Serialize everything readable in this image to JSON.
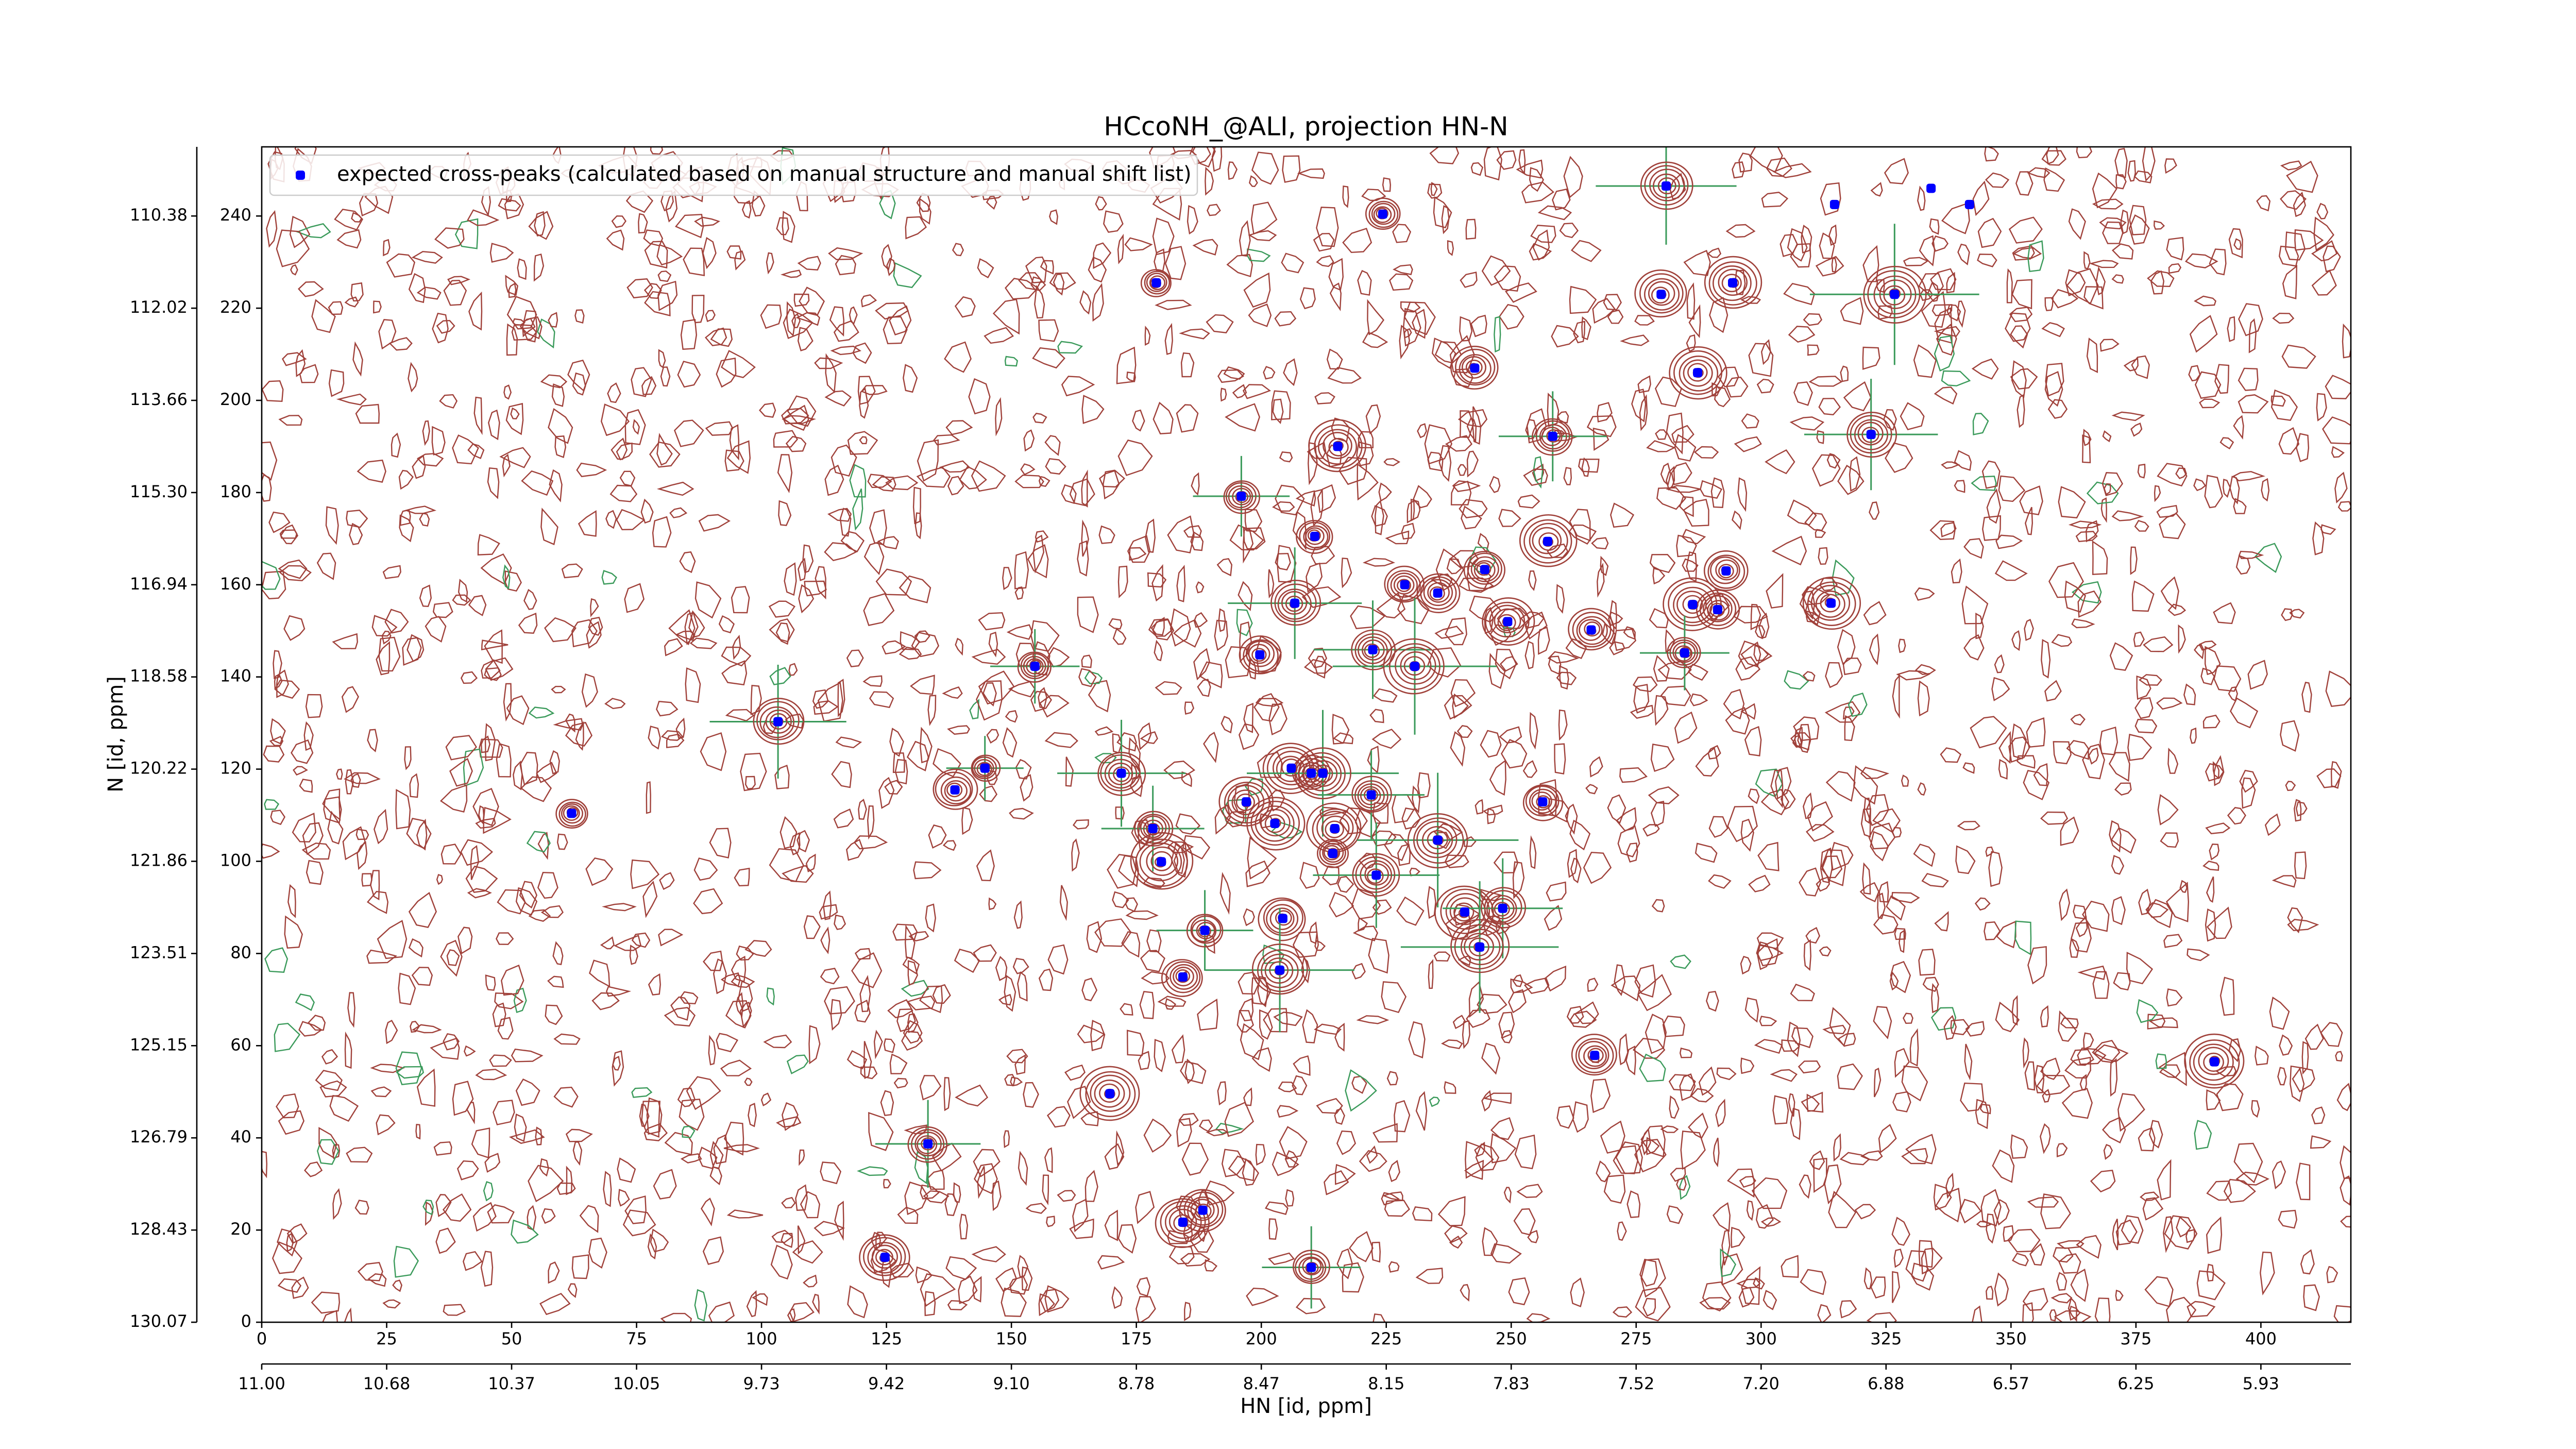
{
  "chart_data": {
    "type": "scatter",
    "title": "HCcoNH_@ALI, projection HN-N",
    "x_label": "HN [id, ppm]",
    "y_label": "N [id, ppm]",
    "xlim": [
      0,
      418
    ],
    "ylim": [
      0,
      255
    ],
    "xticks": [
      0,
      25,
      50,
      75,
      100,
      125,
      150,
      175,
      200,
      225,
      250,
      275,
      300,
      325,
      350,
      375,
      400
    ],
    "yticks": [
      0,
      20,
      40,
      60,
      80,
      100,
      120,
      140,
      160,
      180,
      200,
      220,
      240
    ],
    "x2ticks": [
      {
        "value": 0,
        "label": "11.00"
      },
      {
        "value": 25,
        "label": "10.68"
      },
      {
        "value": 50,
        "label": "10.37"
      },
      {
        "value": 75,
        "label": "10.05"
      },
      {
        "value": 100,
        "label": "9.73"
      },
      {
        "value": 125,
        "label": "9.42"
      },
      {
        "value": 150,
        "label": "9.10"
      },
      {
        "value": 175,
        "label": "8.78"
      },
      {
        "value": 200,
        "label": "8.47"
      },
      {
        "value": 225,
        "label": "8.15"
      },
      {
        "value": 250,
        "label": "7.83"
      },
      {
        "value": 275,
        "label": "7.52"
      },
      {
        "value": 300,
        "label": "7.20"
      },
      {
        "value": 325,
        "label": "6.88"
      },
      {
        "value": 350,
        "label": "6.57"
      },
      {
        "value": 375,
        "label": "6.25"
      },
      {
        "value": 400,
        "label": "5.93"
      }
    ],
    "y2ticks": [
      {
        "value": 0,
        "label": "130.07"
      },
      {
        "value": 20,
        "label": "128.43"
      },
      {
        "value": 40,
        "label": "126.79"
      },
      {
        "value": 60,
        "label": "125.15"
      },
      {
        "value": 80,
        "label": "123.51"
      },
      {
        "value": 100,
        "label": "121.86"
      },
      {
        "value": 120,
        "label": "120.22"
      },
      {
        "value": 140,
        "label": "118.58"
      },
      {
        "value": 160,
        "label": "116.94"
      },
      {
        "value": 180,
        "label": "115.30"
      },
      {
        "value": 200,
        "label": "113.66"
      },
      {
        "value": 220,
        "label": "112.02"
      },
      {
        "value": 240,
        "label": "110.38"
      }
    ],
    "legend": "upper left",
    "series": [
      {
        "name": "expected cross-peaks (calculated based on manual structure and manual shift list)",
        "color": "#0000ff",
        "x": [
          281,
          314.7,
          334,
          341.7,
          224.3,
          179,
          280,
          294.3,
          326.7,
          242.7,
          287.3,
          258.3,
          322,
          215.3,
          196,
          210.7,
          257.3,
          244.7,
          293,
          228.7,
          235.3,
          206.7,
          286.3,
          314,
          291.3,
          249.3,
          266,
          199.7,
          222.3,
          284.7,
          230.7,
          154.7,
          103.3,
          62,
          144.7,
          138.7,
          172,
          206,
          210,
          212.3,
          197,
          222,
          256.3,
          202.7,
          178.3,
          214.7,
          235.3,
          214.3,
          180,
          223,
          240.7,
          248.3,
          204.3,
          188.7,
          243.7,
          203.7,
          184.3,
          266.7,
          390.7,
          169.7,
          133.3,
          188.3,
          184.3,
          124.7,
          210
        ],
        "y": [
          246.5,
          242.5,
          246,
          242.5,
          240.4,
          225.5,
          223,
          225.5,
          223,
          207,
          206,
          192.2,
          192.6,
          190,
          179.2,
          170.5,
          169.4,
          163.3,
          163,
          160,
          158.2,
          156,
          155.7,
          156,
          154.6,
          152,
          150.2,
          144.8,
          145.9,
          145.2,
          142.3,
          142.3,
          130.3,
          110.4,
          120.2,
          115.5,
          119.1,
          120.2,
          119.1,
          119.1,
          112.9,
          114.4,
          112.9,
          108.2,
          107.1,
          107.1,
          104.6,
          101.7,
          99.9,
          97,
          89,
          89.8,
          87.6,
          85,
          81.4,
          76.4,
          74.9,
          57.9,
          56.5,
          49.6,
          38.7,
          24.3,
          21.7,
          14.1,
          11.9
        ]
      }
    ]
  }
}
